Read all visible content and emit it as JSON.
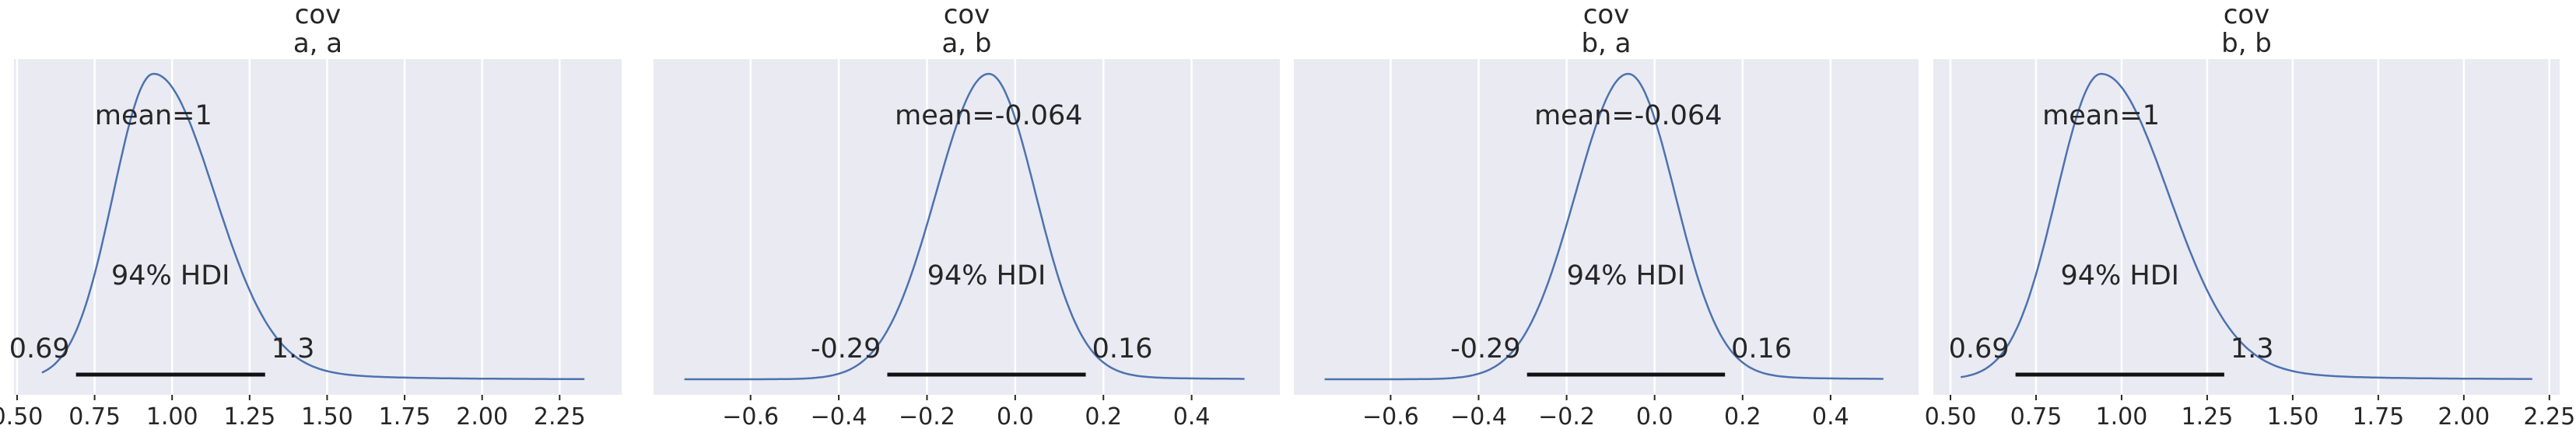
{
  "chart_data": [
    {
      "type": "area",
      "title_line1": "cov",
      "title_line2": "a, a",
      "mean_label": "mean=1",
      "hdi_label": "94% HDI",
      "hdi_low": 0.69,
      "hdi_high": 1.3,
      "hdi_low_label": "0.69",
      "hdi_high_label": "1.3",
      "xlim": [
        0.49,
        2.45
      ],
      "xticks": [
        0.5,
        0.75,
        1.0,
        1.25,
        1.5,
        1.75,
        2.0,
        2.25
      ],
      "xtick_labels": [
        "0.50",
        "0.75",
        "1.00",
        "1.25",
        "1.50",
        "1.75",
        "2.00",
        "2.25"
      ],
      "density": {
        "mode": 0.94,
        "sigma_left": 0.13,
        "sigma_right": 0.19,
        "tail_scale": 0.26,
        "tail_weight": 0.12,
        "range": [
          0.58,
          2.33
        ]
      }
    },
    {
      "type": "area",
      "title_line1": "cov",
      "title_line2": "a, b",
      "mean_label": "mean=-0.064",
      "hdi_label": "94% HDI",
      "hdi_low": -0.29,
      "hdi_high": 0.16,
      "hdi_low_label": "-0.29",
      "hdi_high_label": "0.16",
      "xlim": [
        -0.82,
        0.6
      ],
      "xticks": [
        -0.6,
        -0.4,
        -0.2,
        0.0,
        0.2,
        0.4
      ],
      "xtick_labels": [
        "−0.6",
        "−0.4",
        "−0.2",
        "0.0",
        "0.2",
        "0.4"
      ],
      "density": {
        "mode": -0.06,
        "sigma_left": 0.12,
        "sigma_right": 0.105,
        "tail_scale": 0.17,
        "tail_weight": 0.04,
        "range": [
          -0.75,
          0.52
        ]
      }
    },
    {
      "type": "area",
      "title_line1": "cov",
      "title_line2": "b, a",
      "mean_label": "mean=-0.064",
      "hdi_label": "94% HDI",
      "hdi_low": -0.29,
      "hdi_high": 0.16,
      "hdi_low_label": "-0.29",
      "hdi_high_label": "0.16",
      "xlim": [
        -0.82,
        0.6
      ],
      "xticks": [
        -0.6,
        -0.4,
        -0.2,
        0.0,
        0.2,
        0.4
      ],
      "xtick_labels": [
        "−0.6",
        "−0.4",
        "−0.2",
        "0.0",
        "0.2",
        "0.4"
      ],
      "density": {
        "mode": -0.06,
        "sigma_left": 0.12,
        "sigma_right": 0.105,
        "tail_scale": 0.17,
        "tail_weight": 0.04,
        "range": [
          -0.75,
          0.52
        ]
      }
    },
    {
      "type": "area",
      "title_line1": "cov",
      "title_line2": "b, b",
      "mean_label": "mean=1",
      "hdi_label": "94% HDI",
      "hdi_low": 0.69,
      "hdi_high": 1.3,
      "hdi_low_label": "0.69",
      "hdi_high_label": "1.3",
      "xlim": [
        0.45,
        2.28
      ],
      "xticks": [
        0.5,
        0.75,
        1.0,
        1.25,
        1.5,
        1.75,
        2.0,
        2.25
      ],
      "xtick_labels": [
        "0.50",
        "0.75",
        "1.00",
        "1.25",
        "1.50",
        "1.75",
        "2.00",
        "2.25"
      ],
      "density": {
        "mode": 0.94,
        "sigma_left": 0.13,
        "sigma_right": 0.19,
        "tail_scale": 0.26,
        "tail_weight": 0.12,
        "range": [
          0.53,
          2.2
        ]
      }
    }
  ]
}
